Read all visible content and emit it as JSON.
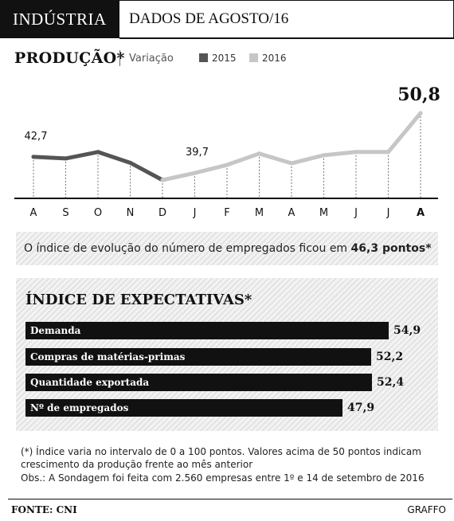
{
  "header": {
    "section": "INDÚSTRIA",
    "subtitle": "DADOS DE AGOSTO/16"
  },
  "production": {
    "title": "PRODUÇÃO*",
    "variation_label": "Variação",
    "legend": [
      {
        "label": "2015",
        "color": "#555555"
      },
      {
        "label": "2016",
        "color": "#c6c6c6"
      }
    ]
  },
  "chart_data": [
    {
      "type": "line",
      "title": "PRODUÇÃO*",
      "categories": [
        "A",
        "S",
        "O",
        "N",
        "D",
        "J",
        "F",
        "M",
        "A",
        "M",
        "J",
        "J",
        "A"
      ],
      "series": [
        {
          "name": "2015",
          "color": "#555555",
          "values": [
            42.7,
            42.4,
            43.6,
            41.6,
            38.4,
            null,
            null,
            null,
            null,
            null,
            null,
            null,
            null
          ]
        },
        {
          "name": "2016",
          "color": "#c6c6c6",
          "values": [
            null,
            null,
            null,
            null,
            38.4,
            39.7,
            41.2,
            43.3,
            41.5,
            43.0,
            43.6,
            43.6,
            50.8
          ]
        }
      ],
      "point_labels": [
        {
          "index": 0,
          "text": "42,7"
        },
        {
          "index": 5,
          "text": "39,7"
        },
        {
          "index": 12,
          "text": "50,8"
        }
      ],
      "highlight_last_category": true,
      "grid": "dashed vertical"
    },
    {
      "type": "bar",
      "title": "ÍNDICE DE EXPECTATIVAS*",
      "orientation": "horizontal",
      "categories": [
        "Demanda",
        "Compras de matérias-primas",
        "Quantidade exportada",
        "Nº de empregados"
      ],
      "values": [
        54.9,
        52.2,
        52.4,
        47.9
      ],
      "value_labels": [
        "54,9",
        "52,2",
        "52,4",
        "47,9"
      ],
      "xlim": [
        0,
        100
      ]
    }
  ],
  "info": {
    "text": "O índice de evolução do número de empregados ficou em ",
    "highlight": "46,3 pontos*"
  },
  "notes": [
    "(*) Índice varia no intervalo de 0 a 100 pontos. Valores acima de 50 pontos indicam",
    "crescimento da produção frente ao mês anterior",
    "Obs.: A Sondagem foi feita com 2.560 empresas entre 1º e 14 de setembro de 2016"
  ],
  "footer": {
    "source": "FONTE: CNI",
    "credit": "GRAFFO"
  }
}
